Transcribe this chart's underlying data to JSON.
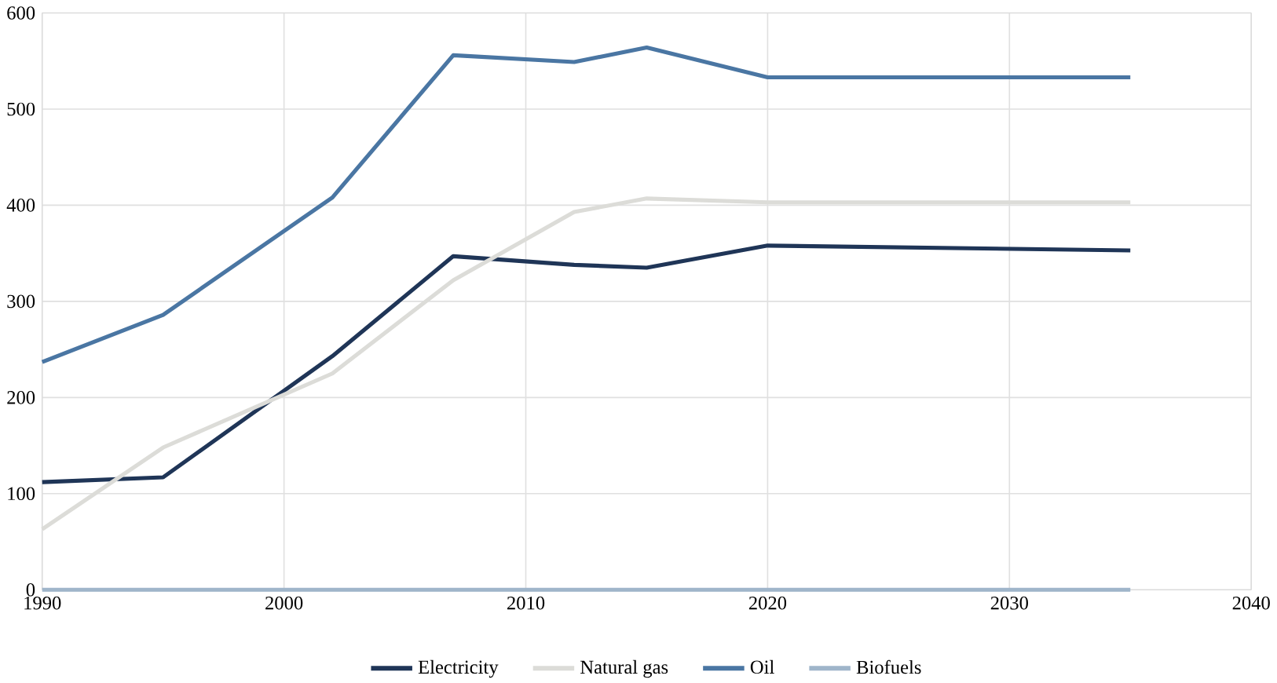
{
  "chart_data": {
    "type": "line",
    "x": [
      1990,
      1995,
      2002,
      2007,
      2012,
      2015,
      2020,
      2035
    ],
    "series": [
      {
        "name": "Electricity",
        "color": "#1f3557",
        "values": [
          112,
          117,
          243,
          347,
          338,
          335,
          358,
          353
        ]
      },
      {
        "name": "Natural gas",
        "color": "#dcdcd8",
        "values": [
          63,
          148,
          225,
          322,
          393,
          407,
          403,
          403
        ]
      },
      {
        "name": "Oil",
        "color": "#4a76a3",
        "values": [
          237,
          286,
          408,
          556,
          549,
          564,
          533,
          533
        ]
      },
      {
        "name": "Biofuels",
        "color": "#9fb5ca",
        "values": [
          0,
          0,
          0,
          0,
          0,
          0,
          0,
          0
        ]
      }
    ],
    "xlim": [
      1990,
      2040
    ],
    "xticks": [
      1990,
      2000,
      2010,
      2020,
      2030,
      2040
    ],
    "ylim": [
      0,
      600
    ],
    "yticks": [
      0,
      100,
      200,
      300,
      400,
      500,
      600
    ],
    "grid": true,
    "legend": "bottom",
    "marker": "none",
    "line_style": "solid"
  }
}
